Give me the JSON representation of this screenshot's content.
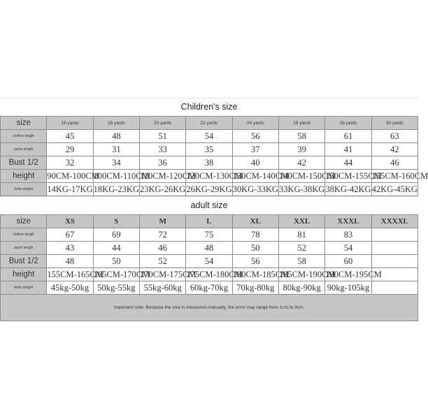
{
  "children": {
    "title": "Children's size",
    "row_labels": [
      "size",
      "clothes length",
      "pants length",
      "Bust 1/2",
      "height",
      "body weight"
    ],
    "sizes": [
      "16 yards",
      "18 yards",
      "20 yards",
      "22 yards",
      "24 yards",
      "26 yards",
      "28 yards",
      "30 yards"
    ],
    "rows": [
      [
        "45",
        "48",
        "51",
        "54",
        "56",
        "58",
        "61",
        "63"
      ],
      [
        "29",
        "31",
        "33",
        "35",
        "37",
        "39",
        "41",
        "42"
      ],
      [
        "32",
        "34",
        "36",
        "38",
        "40",
        "42",
        "44",
        "46"
      ],
      [
        "90CM-100CM",
        "100CM-110CM",
        "110CM-120CM",
        "120CM-130CM",
        "130CM-140CM",
        "140CM-150CM",
        "150CM-155CM",
        "155CM-160CM"
      ],
      [
        "14KG-17KG",
        "18KG-23KG",
        "23KG-26KG",
        "26KG-29KG",
        "30KG-33KG",
        "33KG-38KG",
        "38KG-42KG",
        "42KG-45KG"
      ]
    ]
  },
  "adult": {
    "title": "adult size",
    "row_labels": [
      "size",
      "clothes length",
      "pants length",
      "Bust 1/2",
      "height",
      "body weight"
    ],
    "sizes": [
      "XS",
      "S",
      "M",
      "L",
      "XL",
      "XXL",
      "XXXL",
      "XXXXL"
    ],
    "rows": [
      [
        "67",
        "69",
        "72",
        "75",
        "78",
        "81",
        "83",
        ""
      ],
      [
        "43",
        "44",
        "46",
        "48",
        "50",
        "52",
        "54",
        ""
      ],
      [
        "48",
        "50",
        "52",
        "54",
        "56",
        "58",
        "60",
        ""
      ],
      [
        "155CM-165CM",
        "165CM-170CM",
        "170CM-175CM",
        "175CM-180CM",
        "180CM-185CM",
        "185CM-190CM",
        "190CM-195CM",
        ""
      ],
      [
        "45kg-50kg",
        "50kg-55kg",
        "55kg-60kg",
        "60kg-70kg",
        "70kg-80kg",
        "80kg-90kg",
        "90kg-105kg",
        ""
      ]
    ]
  },
  "note": "Important note: Because the size is measured manually, the error may range from 1cm to 3cm."
}
